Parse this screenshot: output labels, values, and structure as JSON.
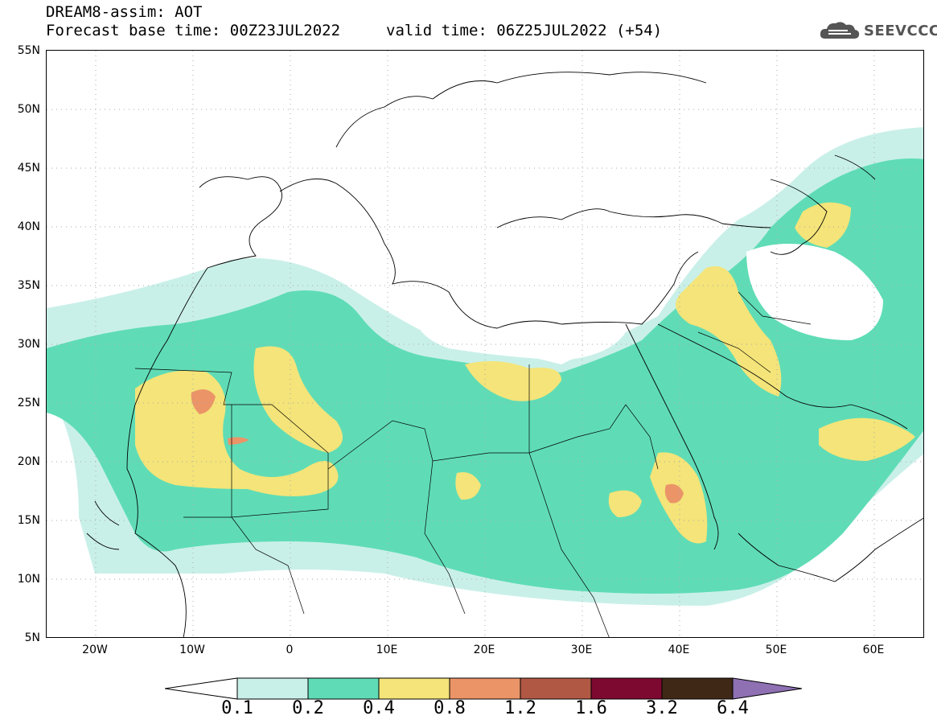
{
  "header": {
    "title": "DREAM8-assim: AOT",
    "base_time": "Forecast base time: 00Z23JUL2022",
    "valid_time": "valid time: 06Z25JUL2022 (+54)"
  },
  "logo": {
    "text": "SEEVCCC",
    "icon": "cloud-logo-icon"
  },
  "map": {
    "lat_labels": [
      "55N",
      "50N",
      "45N",
      "40N",
      "35N",
      "30N",
      "25N",
      "20N",
      "15N",
      "10N",
      "5N"
    ],
    "lon_labels": [
      "20W",
      "10W",
      "0",
      "10E",
      "20E",
      "30E",
      "40E",
      "50E",
      "60E"
    ],
    "lat_range": [
      5,
      55
    ],
    "lon_range": [
      -25,
      65
    ]
  },
  "colorbar": {
    "labels": [
      "0.1",
      "0.2",
      "0.4",
      "0.8",
      "1.2",
      "1.6",
      "3.2",
      "6.4"
    ],
    "colors": [
      "#c9f0e8",
      "#5fdcb6",
      "#f4e479",
      "#eb9468",
      "#b15845",
      "#7d0830",
      "#3f2816",
      "#8e70b3"
    ]
  }
}
